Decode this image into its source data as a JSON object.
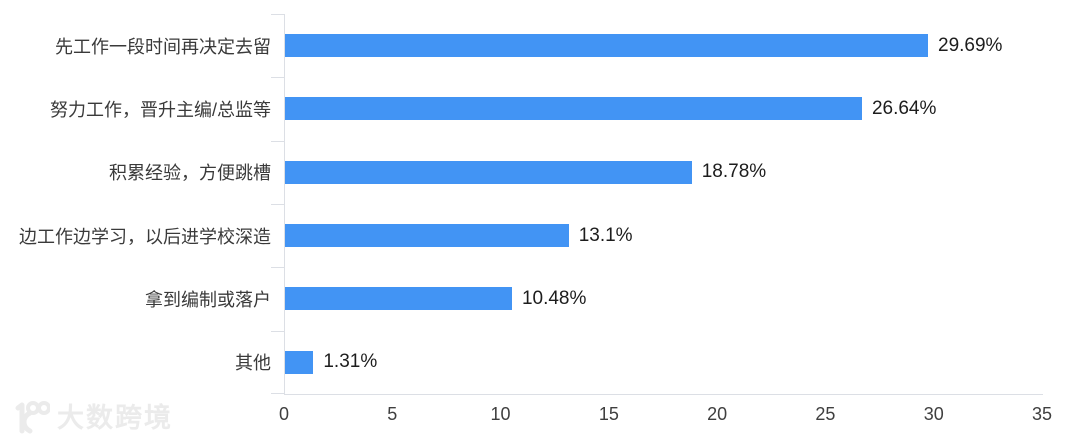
{
  "chart_data": {
    "type": "bar",
    "orientation": "horizontal",
    "title": "",
    "xlabel": "",
    "ylabel": "",
    "categories": [
      "先工作一段时间再决定去留",
      "努力工作，晋升主编/总监等",
      "积累经验，方便跳槽",
      "边工作边学习，以后进学校深造",
      "拿到编制或落户",
      "其他"
    ],
    "values": [
      29.69,
      26.64,
      18.78,
      13.1,
      10.48,
      1.31
    ],
    "value_labels": [
      "29.69%",
      "26.64%",
      "18.78%",
      "13.1%",
      "10.48%",
      "1.31%"
    ],
    "xlim": [
      0,
      35
    ],
    "x_ticks": [
      0,
      5,
      10,
      15,
      20,
      25,
      30,
      35
    ],
    "grid": false,
    "legend": "none",
    "bar_color": "#4294F4",
    "axis_line_color": "#DCDFE5",
    "category_label_color": "#3A3A3A",
    "value_label_color": "#1D1D1D",
    "tick_label_color": "#3F3F3F",
    "background_color": "#FFFFFF"
  },
  "watermark": {
    "text": "大数跨境",
    "logo": "k100-logo",
    "color": "#EBEBEB"
  }
}
